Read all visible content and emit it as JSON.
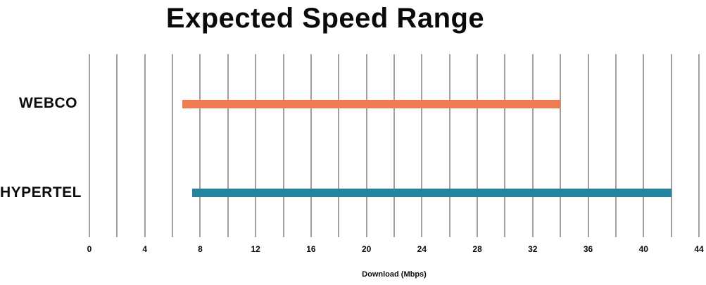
{
  "chart_data": {
    "type": "bar",
    "subtype": "horizontal_range_bars",
    "title": "Expected Speed Range",
    "xlabel": "Download (Mbps)",
    "xlim": [
      0,
      44
    ],
    "x_major_ticks": [
      0,
      4,
      8,
      12,
      16,
      20,
      24,
      28,
      32,
      36,
      40,
      44
    ],
    "x_gridline_step": 2,
    "grid": "vertical-gridlines-only",
    "legend": "none",
    "categories": [
      "WEBCO",
      "HYPERTEL"
    ],
    "series": [
      {
        "name": "WEBCO",
        "range_min_mbps": 6.7,
        "range_max_mbps": 34,
        "color": "#F07B51"
      },
      {
        "name": "HYPERTEL",
        "range_min_mbps": 7.4,
        "range_max_mbps": 42,
        "color": "#26859E"
      }
    ],
    "gridline_color": "#A5A099",
    "text_color": "#0A0A0A",
    "background_color": "#FFFFFF"
  }
}
